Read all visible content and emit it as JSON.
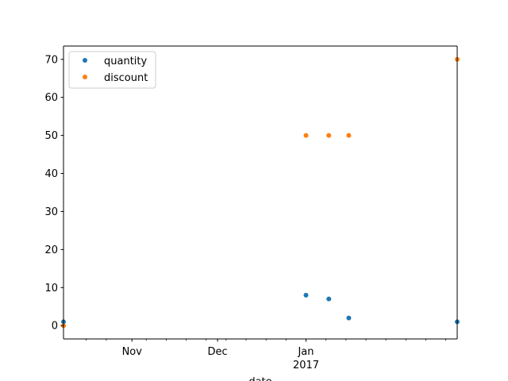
{
  "chart_data": {
    "type": "scatter",
    "title": "",
    "xlabel": "date",
    "ylabel": "",
    "x_domain": [
      "2016-10-08",
      "2017-02-23"
    ],
    "ylim": [
      -3.5,
      73.5
    ],
    "y_ticks": [
      0,
      10,
      20,
      30,
      40,
      50,
      60,
      70
    ],
    "x_major_ticks": [
      {
        "date": "2016-11-01",
        "label": "Nov",
        "sublabel": ""
      },
      {
        "date": "2016-12-01",
        "label": "Dec",
        "sublabel": ""
      },
      {
        "date": "2017-01-01",
        "label": "Jan",
        "sublabel": "2017"
      }
    ],
    "x_minor_ticks": [
      "2016-10-16",
      "2016-10-23",
      "2016-11-06",
      "2016-11-13",
      "2016-11-20",
      "2016-11-27",
      "2016-12-04",
      "2016-12-11",
      "2016-12-18",
      "2016-12-25",
      "2017-01-08",
      "2017-01-15",
      "2017-01-22",
      "2017-01-29",
      "2017-02-05",
      "2017-02-12",
      "2017-02-19"
    ],
    "legend_position": "upper-left",
    "series": [
      {
        "name": "quantity",
        "color": "#1f77b4",
        "points": [
          {
            "x": "2016-10-08",
            "y": 1
          },
          {
            "x": "2017-01-01",
            "y": 8
          },
          {
            "x": "2017-01-09",
            "y": 7
          },
          {
            "x": "2017-01-16",
            "y": 2
          },
          {
            "x": "2017-02-23",
            "y": 1
          }
        ]
      },
      {
        "name": "discount",
        "color": "#ff7f0e",
        "points": [
          {
            "x": "2016-10-08",
            "y": 0
          },
          {
            "x": "2017-01-01",
            "y": 50
          },
          {
            "x": "2017-01-09",
            "y": 50
          },
          {
            "x": "2017-01-16",
            "y": 50
          },
          {
            "x": "2017-02-23",
            "y": 70
          }
        ]
      }
    ]
  }
}
